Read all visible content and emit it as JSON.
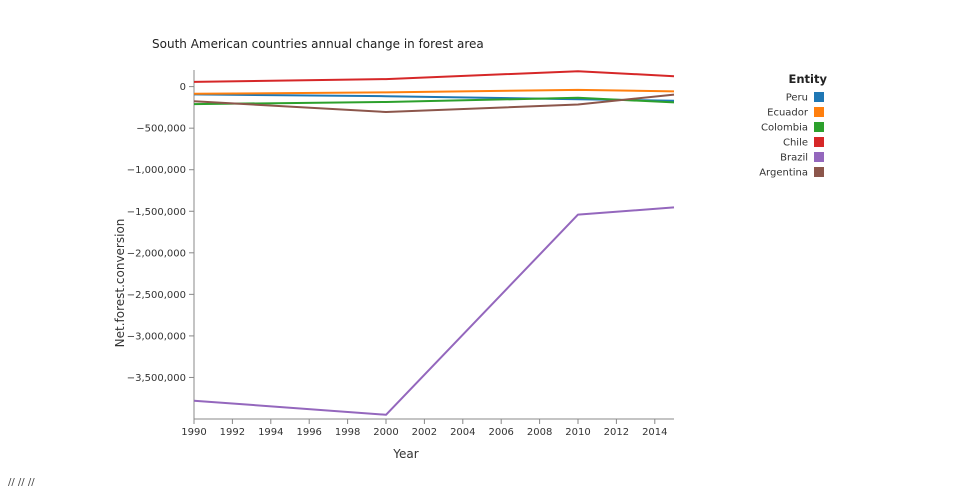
{
  "chart_data": {
    "type": "line",
    "title": "South American countries annual change in forest area",
    "xlabel": "Year",
    "ylabel": "Net.forest.conversion",
    "xlim": [
      1990,
      2015
    ],
    "ylim": [
      -4000000,
      200000
    ],
    "x_ticks": [
      1990,
      1992,
      1994,
      1996,
      1998,
      2000,
      2002,
      2004,
      2006,
      2008,
      2010,
      2012,
      2014
    ],
    "y_ticks": [
      0,
      -500000,
      -1000000,
      -1500000,
      -2000000,
      -2500000,
      -3000000,
      -3500000
    ],
    "y_tick_labels": [
      "0",
      "−500,000",
      "−1,000,000",
      "−1,500,000",
      "−2,000,000",
      "−2,500,000",
      "−3,000,000",
      "−3,500,000"
    ],
    "legend_title": "Entity",
    "legend_position": "top-right",
    "x": [
      1990,
      2000,
      2010,
      2015
    ],
    "series": [
      {
        "name": "Peru",
        "color": "#1f77b4",
        "values": [
          -94000,
          -115000,
          -152000,
          -170000
        ]
      },
      {
        "name": "Ecuador",
        "color": "#ff7f0e",
        "values": [
          -86000,
          -70000,
          -40000,
          -58000
        ]
      },
      {
        "name": "Colombia",
        "color": "#2ca02c",
        "values": [
          -210000,
          -185000,
          -135000,
          -190000
        ]
      },
      {
        "name": "Chile",
        "color": "#d62728",
        "values": [
          57000,
          90000,
          186000,
          125000
        ]
      },
      {
        "name": "Brazil",
        "color": "#9467bd",
        "values": [
          -3780000,
          -3950000,
          -1540000,
          -1453000
        ]
      },
      {
        "name": "Argentina",
        "color": "#8c564b",
        "values": [
          -175000,
          -305000,
          -215000,
          -96000
        ]
      }
    ]
  },
  "footer": {
    "text": "// // //"
  }
}
